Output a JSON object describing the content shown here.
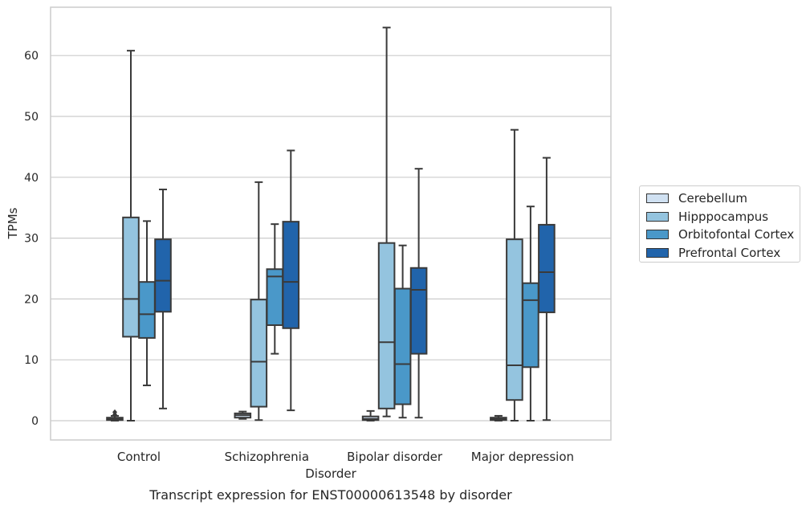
{
  "chart_data": {
    "type": "box",
    "title": "Transcript expression for ENST00000613548 by disorder",
    "xlabel": "Disorder",
    "ylabel": "TPMs",
    "ylim": [
      -3,
      68
    ],
    "yticks": [
      0,
      10,
      20,
      30,
      40,
      50,
      60
    ],
    "grid": "horizontal",
    "legend_position": "right",
    "categories": [
      "Control",
      "Schizophrenia",
      "Bipolar disorder",
      "Major depression"
    ],
    "series": [
      {
        "name": "Cerebellum",
        "color": "#d0e1f2",
        "boxes": [
          {
            "whisker_low": 0.0,
            "q1": 0.1,
            "median": 0.3,
            "q3": 0.5,
            "whisker_high": 0.8,
            "outliers": [
              1.0,
              1.4
            ]
          },
          {
            "whisker_low": 0.3,
            "q1": 0.5,
            "median": 0.9,
            "q3": 1.2,
            "whisker_high": 1.5,
            "outliers": []
          },
          {
            "whisker_low": 0.0,
            "q1": 0.1,
            "median": 0.3,
            "q3": 0.7,
            "whisker_high": 1.6,
            "outliers": []
          },
          {
            "whisker_low": 0.0,
            "q1": 0.1,
            "median": 0.3,
            "q3": 0.5,
            "whisker_high": 0.8,
            "outliers": []
          }
        ]
      },
      {
        "name": "Hipppocampus",
        "color": "#94c4df",
        "boxes": [
          {
            "whisker_low": 0.0,
            "q1": 13.8,
            "median": 20.0,
            "q3": 33.4,
            "whisker_high": 60.8,
            "outliers": []
          },
          {
            "whisker_low": 0.1,
            "q1": 2.3,
            "median": 9.7,
            "q3": 19.9,
            "whisker_high": 39.2,
            "outliers": []
          },
          {
            "whisker_low": 0.7,
            "q1": 2.0,
            "median": 12.9,
            "q3": 29.2,
            "whisker_high": 64.6,
            "outliers": []
          },
          {
            "whisker_low": 0.0,
            "q1": 3.4,
            "median": 9.1,
            "q3": 29.8,
            "whisker_high": 47.8,
            "outliers": []
          }
        ]
      },
      {
        "name": "Orbitofontal Cortex",
        "color": "#4a98c9",
        "boxes": [
          {
            "whisker_low": 5.8,
            "q1": 13.6,
            "median": 17.5,
            "q3": 22.8,
            "whisker_high": 32.8,
            "outliers": []
          },
          {
            "whisker_low": 11.0,
            "q1": 15.7,
            "median": 23.7,
            "q3": 24.9,
            "whisker_high": 32.3,
            "outliers": []
          },
          {
            "whisker_low": 0.5,
            "q1": 2.7,
            "median": 9.3,
            "q3": 21.7,
            "whisker_high": 28.8,
            "outliers": []
          },
          {
            "whisker_low": 0.0,
            "q1": 8.8,
            "median": 19.8,
            "q3": 22.6,
            "whisker_high": 35.2,
            "outliers": []
          }
        ]
      },
      {
        "name": "Prefrontal Cortex",
        "color": "#2164ab",
        "boxes": [
          {
            "whisker_low": 2.0,
            "q1": 17.9,
            "median": 23.0,
            "q3": 29.8,
            "whisker_high": 38.0,
            "outliers": []
          },
          {
            "whisker_low": 1.7,
            "q1": 15.2,
            "median": 22.8,
            "q3": 32.7,
            "whisker_high": 44.4,
            "outliers": []
          },
          {
            "whisker_low": 0.5,
            "q1": 11.0,
            "median": 21.5,
            "q3": 25.1,
            "whisker_high": 41.4,
            "outliers": []
          },
          {
            "whisker_low": 0.1,
            "q1": 17.8,
            "median": 24.4,
            "q3": 32.2,
            "whisker_high": 43.2,
            "outliers": []
          }
        ]
      }
    ]
  }
}
